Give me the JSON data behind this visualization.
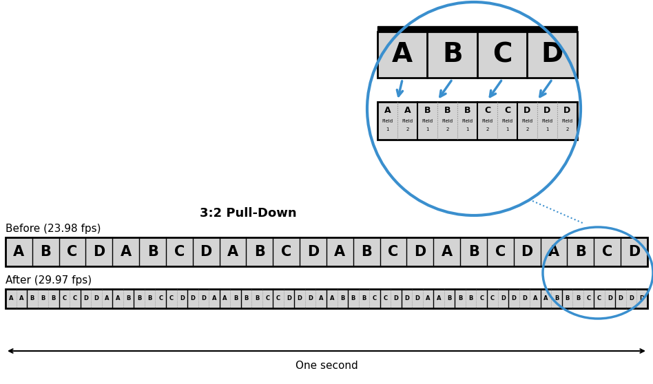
{
  "title": "3:2 Pull-Down",
  "before_label": "Before (23.98 fps)",
  "after_label": "After (29.97 fps)",
  "one_second_label": "One second",
  "before_sequence": [
    "A",
    "B",
    "C",
    "D",
    "A",
    "B",
    "C",
    "D",
    "A",
    "B",
    "C",
    "D",
    "A",
    "B",
    "C",
    "D",
    "A",
    "B",
    "C",
    "D",
    "A",
    "B",
    "C",
    "D"
  ],
  "after_sequence": [
    "A",
    "A",
    "B",
    "B",
    "B",
    "C",
    "C",
    "D",
    "D",
    "A",
    "A",
    "B",
    "B",
    "B",
    "C",
    "C",
    "D",
    "D",
    "D",
    "A",
    "A",
    "B",
    "B",
    "B",
    "C",
    "C",
    "D",
    "D",
    "D",
    "A",
    "A",
    "B",
    "B",
    "B",
    "C",
    "C",
    "D",
    "D",
    "D",
    "A",
    "A",
    "B",
    "B",
    "B",
    "C",
    "C",
    "D",
    "D",
    "D",
    "A",
    "A",
    "B",
    "B",
    "B",
    "C",
    "C",
    "D",
    "D",
    "D",
    "D"
  ],
  "zoom_fields": [
    "A",
    "A",
    "B",
    "B",
    "B",
    "C",
    "C",
    "D",
    "D",
    "D"
  ],
  "zoom_film_frames": [
    "A",
    "B",
    "C",
    "D"
  ],
  "arrow_color": "#3a8fce",
  "box_color_light": "#d4d4d4",
  "box_border": "#000000",
  "text_color": "#000000",
  "background": "#ffffff",
  "circle_color": "#3a8fce"
}
